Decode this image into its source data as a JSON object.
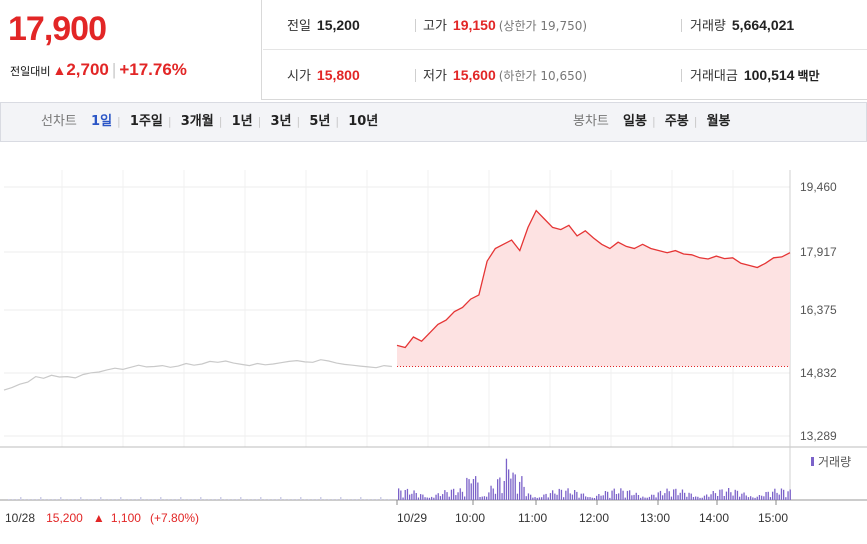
{
  "quote": {
    "price": "17,900",
    "change_label": "전일대비",
    "change_arrow": "▲",
    "change_value": "2,700",
    "change_pct": "+17.76%"
  },
  "stats": {
    "prev_close_label": "전일",
    "prev_close": "15,200",
    "high_label": "고가",
    "high": "19,150",
    "upper_limit": "(상한가 19,750)",
    "volume_label": "거래량",
    "volume": "5,664,021",
    "open_label": "시가",
    "open": "15,800",
    "low_label": "저가",
    "low": "15,600",
    "lower_limit": "(하한가 10,650)",
    "amount_label": "거래대금",
    "amount": "100,514",
    "amount_unit": "백만"
  },
  "toolbar": {
    "line_title": "선차트",
    "line_items": [
      "1일",
      "1주일",
      "3개월",
      "1년",
      "3년",
      "5년",
      "10년"
    ],
    "selected": "1일",
    "candle_title": "봉차트",
    "candle_items": [
      "일봉",
      "주봉",
      "월봉"
    ]
  },
  "chart_data": {
    "type": "line",
    "y_ticks": [
      "19,460",
      "17,917",
      "16,375",
      "14,832",
      "13,289"
    ],
    "ylim": [
      13289,
      19460
    ],
    "x_ticks": [
      "10/29",
      "10:00",
      "11:00",
      "12:00",
      "13:00",
      "14:00",
      "15:00"
    ],
    "volume_legend": "거래량",
    "prev_day_footer": {
      "date": "10/28",
      "close": "15,200",
      "arrow": "▲",
      "change": "1,100",
      "pct": "(+7.80%)"
    },
    "reference_price": 15200,
    "series": [
      {
        "name": "10/28",
        "values": [
          14640,
          14700,
          14780,
          14830,
          14960,
          14920,
          14990,
          14950,
          14960,
          14930,
          15010,
          15050,
          15070,
          15120,
          15160,
          15130,
          15180,
          15230,
          15190,
          15200,
          15220,
          15180,
          15210,
          15270,
          15230,
          15260,
          15320,
          15300,
          15330,
          15280,
          15250,
          15220,
          15270,
          15240,
          15260,
          15290,
          15320,
          15340,
          15310,
          15300,
          15360,
          15330,
          15280,
          15250,
          15230,
          15210,
          15190,
          15170,
          15220,
          15200
        ]
      },
      {
        "name": "10/29",
        "values": [
          15700,
          15650,
          15900,
          15800,
          16000,
          16200,
          16300,
          16500,
          16600,
          16800,
          16900,
          17700,
          18000,
          18100,
          18200,
          17950,
          18500,
          18900,
          18700,
          18500,
          18450,
          18550,
          18300,
          18420,
          18250,
          18100,
          18000,
          18150,
          18050,
          18000,
          18100,
          18000,
          17950,
          17900,
          17950,
          17870,
          17850,
          17780,
          17750,
          17820,
          17760,
          17780,
          17650,
          17600,
          17550,
          17650,
          17780,
          17800,
          17900
        ]
      }
    ]
  }
}
